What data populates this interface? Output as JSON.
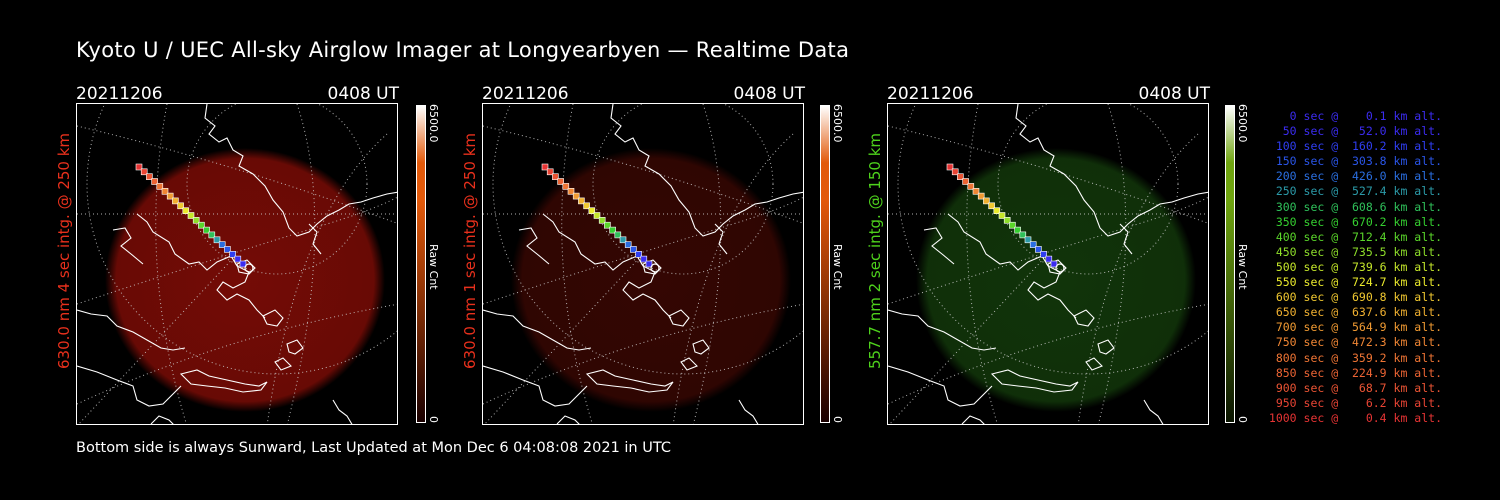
{
  "title": "Kyoto U / UEC All-sky Airglow Imager at Longyearbyen — Realtime Data",
  "footer": "Bottom side is always Sunward, Last Updated at Mon Dec  6 04:08:08 2021 in UTC",
  "panels": [
    {
      "date": "20211206",
      "time": "0408 UT",
      "label": "630.0 nm 4 sec intg. @ 250 km",
      "label_color": "#e8301c",
      "cbar_max": "6500.0",
      "cbar_min": "0",
      "cbar_unit": "Raw Cnt",
      "cbar_top": "#ffffff",
      "cbar_mid": "#e2590a",
      "cbar_bottom": "#1a0000",
      "glow_color": "#7a0c06",
      "glow_opacity": 0.95
    },
    {
      "date": "20211206",
      "time": "0408 UT",
      "label": "630.0 nm 1 sec intg. @ 250 km",
      "label_color": "#e8301c",
      "cbar_max": "6500.0",
      "cbar_min": "0",
      "cbar_unit": "Raw Cnt",
      "cbar_top": "#ffffff",
      "cbar_mid": "#e2590a",
      "cbar_bottom": "#1a0000",
      "glow_color": "#3a0703",
      "glow_opacity": 0.9
    },
    {
      "date": "20211206",
      "time": "0408 UT",
      "label": "557.7 nm 2 sec intg. @ 150 km",
      "label_color": "#4ed21c",
      "cbar_max": "6500.0",
      "cbar_min": "0",
      "cbar_unit": "Raw Cnt",
      "cbar_top": "#ffffff",
      "cbar_mid": "#6fa410",
      "cbar_bottom": "#0a1400",
      "glow_color": "#133a0b",
      "glow_opacity": 0.9
    }
  ],
  "legend": [
    {
      "text": "   0 sec @    0.1 km alt.",
      "color": "#3b2cf0"
    },
    {
      "text": "  50 sec @   52.0 km alt.",
      "color": "#3b2cf0"
    },
    {
      "text": " 100 sec @  160.2 km alt.",
      "color": "#2f3ef2"
    },
    {
      "text": " 150 sec @  303.8 km alt.",
      "color": "#2a55e8"
    },
    {
      "text": " 200 sec @  426.0 km alt.",
      "color": "#2a6ee0"
    },
    {
      "text": " 250 sec @  527.4 km alt.",
      "color": "#2b9aa8"
    },
    {
      "text": " 300 sec @  608.6 km alt.",
      "color": "#2fc05a"
    },
    {
      "text": " 350 sec @  670.2 km alt.",
      "color": "#35cf30"
    },
    {
      "text": " 400 sec @  712.4 km alt.",
      "color": "#5ad62a"
    },
    {
      "text": " 450 sec @  735.5 km alt.",
      "color": "#8ede2a"
    },
    {
      "text": " 500 sec @  739.6 km alt.",
      "color": "#c4e62a"
    },
    {
      "text": " 550 sec @  724.7 km alt.",
      "color": "#eaea2c"
    },
    {
      "text": " 600 sec @  690.8 km alt.",
      "color": "#f0c830"
    },
    {
      "text": " 650 sec @  637.6 km alt.",
      "color": "#f0b030"
    },
    {
      "text": " 700 sec @  564.9 km alt.",
      "color": "#f09a32"
    },
    {
      "text": " 750 sec @  472.3 km alt.",
      "color": "#f08634"
    },
    {
      "text": " 800 sec @  359.2 km alt.",
      "color": "#ee7434"
    },
    {
      "text": " 850 sec @  224.9 km alt.",
      "color": "#ec6434"
    },
    {
      "text": " 900 sec @   68.7 km alt.",
      "color": "#ea5434"
    },
    {
      "text": " 950 sec @    6.2 km alt.",
      "color": "#e84434"
    },
    {
      "text": "1000 sec @    0.4 km alt.",
      "color": "#e63434"
    }
  ]
}
